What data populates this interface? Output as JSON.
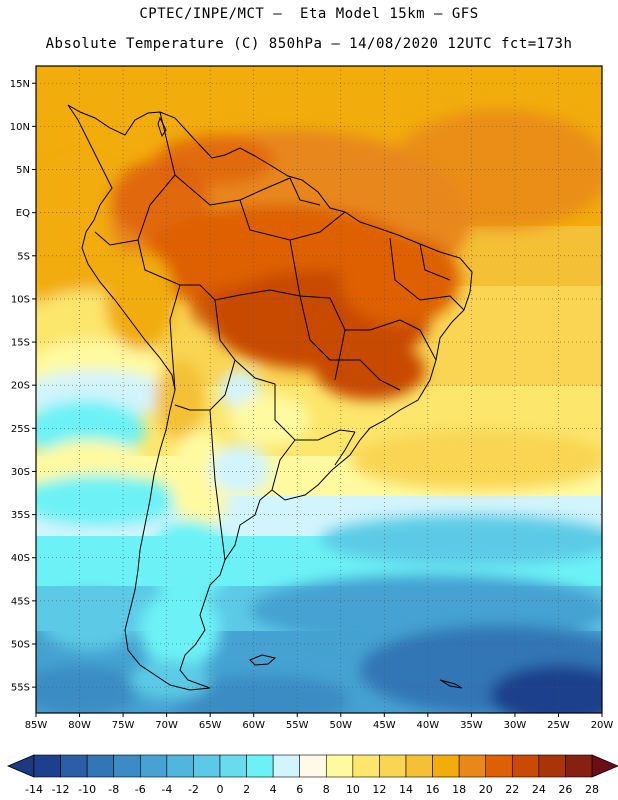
{
  "header": {
    "line1": "CPTEC/INPE/MCT –  Eta Model 15km – GFS",
    "line2": "Absolute Temperature (C) 850hPa – 14/08/2020 12UTC fct=173h"
  },
  "map": {
    "region": "South America",
    "lat_range": [
      -58,
      17
    ],
    "lon_range": [
      -85,
      -20
    ],
    "lat_labels": [
      "15N",
      "10N",
      "5N",
      "EQ",
      "5S",
      "10S",
      "15S",
      "20S",
      "25S",
      "30S",
      "35S",
      "40S",
      "45S",
      "50S",
      "55S"
    ],
    "lat_values": [
      15,
      10,
      5,
      0,
      -5,
      -10,
      -15,
      -20,
      -25,
      -30,
      -35,
      -40,
      -45,
      -50,
      -55
    ],
    "lon_labels": [
      "85W",
      "80W",
      "75W",
      "70W",
      "65W",
      "60W",
      "55W",
      "50W",
      "45W",
      "40W",
      "35W",
      "30W",
      "25W",
      "20W"
    ],
    "lon_values": [
      -85,
      -80,
      -75,
      -70,
      -65,
      -60,
      -55,
      -50,
      -45,
      -40,
      -35,
      -30,
      -25,
      -20
    ],
    "grid": "dotted"
  },
  "colorbar": {
    "labels": [
      "-14",
      "-12",
      "-10",
      "-8",
      "-6",
      "-4",
      "-2",
      "0",
      "2",
      "4",
      "6",
      "8",
      "10",
      "12",
      "14",
      "16",
      "18",
      "20",
      "22",
      "24",
      "26",
      "28"
    ],
    "colors": [
      "#1e3f8c",
      "#2a5ea6",
      "#3276b6",
      "#3b8cc4",
      "#45a2d2",
      "#50b6dd",
      "#5ccae6",
      "#66dcee",
      "#6cf2f6",
      "#d2f4fc",
      "#fffae8",
      "#fffaa0",
      "#fce66c",
      "#f9d553",
      "#f4c036",
      "#f2ac0c",
      "#e8871a",
      "#de6006",
      "#c84a04",
      "#a83408",
      "#862010"
    ],
    "min_color": "#1b3a82",
    "max_color": "#6e0c18"
  }
}
